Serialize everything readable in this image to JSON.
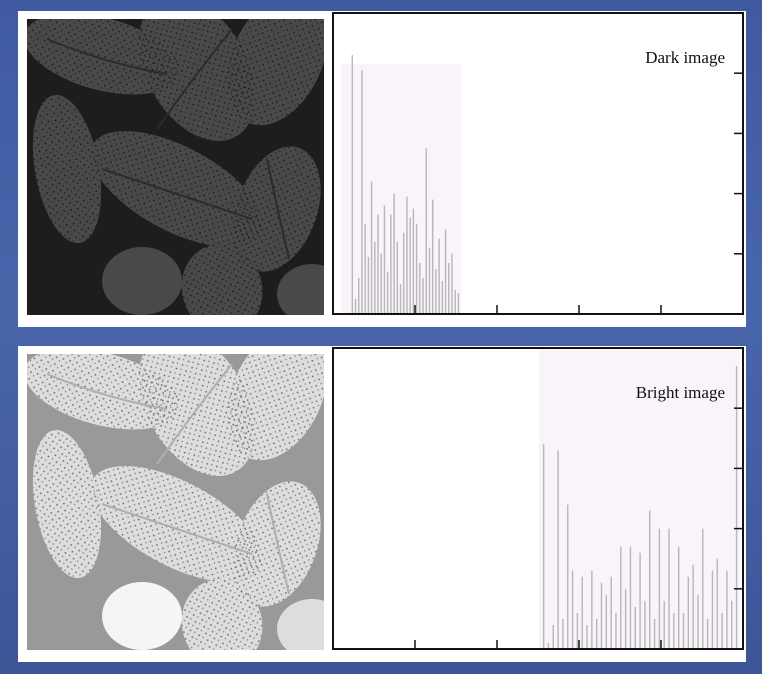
{
  "panels": [
    {
      "id": "dark",
      "image": {
        "description_icon": "pollen-grains-photo-dark"
      },
      "chart_data": {
        "type": "bar",
        "title": "Dark image",
        "xlabel": "",
        "ylabel": "",
        "xlim": [
          0,
          255
        ],
        "ylim": [
          0,
          1
        ],
        "tick_count_x": 5,
        "tick_count_y": 5,
        "grid": false,
        "highlight_range": [
          5,
          80
        ],
        "highlight_height": 0.83,
        "highlight_color": "#fbf3fc",
        "bar_color": "#b8b8b8",
        "x": [
          12,
          14,
          16,
          18,
          20,
          22,
          24,
          26,
          28,
          30,
          32,
          34,
          36,
          38,
          40,
          42,
          44,
          46,
          48,
          50,
          52,
          54,
          56,
          58,
          60,
          62,
          64,
          66,
          68,
          70,
          72,
          74,
          76,
          78
        ],
        "values": [
          0.86,
          0.05,
          0.12,
          0.81,
          0.3,
          0.19,
          0.44,
          0.24,
          0.33,
          0.2,
          0.36,
          0.14,
          0.33,
          0.4,
          0.24,
          0.1,
          0.27,
          0.39,
          0.32,
          0.35,
          0.3,
          0.17,
          0.12,
          0.55,
          0.22,
          0.38,
          0.15,
          0.25,
          0.11,
          0.28,
          0.17,
          0.2,
          0.08,
          0.07
        ]
      }
    },
    {
      "id": "bright",
      "image": {
        "description_icon": "pollen-grains-photo-bright"
      },
      "chart_data": {
        "type": "bar",
        "title": "Bright image",
        "xlabel": "",
        "ylabel": "",
        "xlim": [
          0,
          255
        ],
        "ylim": [
          0,
          1
        ],
        "tick_count_x": 5,
        "tick_count_y": 5,
        "grid": false,
        "highlight_range": [
          128,
          253
        ],
        "highlight_height": 1.0,
        "highlight_color": "#fbf3fc",
        "bar_color": "#b8b8b8",
        "x": [
          131,
          134,
          137,
          140,
          143,
          146,
          149,
          152,
          155,
          158,
          161,
          164,
          167,
          170,
          173,
          176,
          179,
          182,
          185,
          188,
          191,
          194,
          197,
          200,
          203,
          206,
          209,
          212,
          215,
          218,
          221,
          224,
          227,
          230,
          233,
          236,
          239,
          242,
          245,
          248,
          251
        ],
        "values": [
          0.68,
          0.02,
          0.08,
          0.66,
          0.1,
          0.48,
          0.26,
          0.12,
          0.24,
          0.08,
          0.26,
          0.1,
          0.22,
          0.18,
          0.24,
          0.12,
          0.34,
          0.2,
          0.34,
          0.14,
          0.32,
          0.16,
          0.46,
          0.1,
          0.4,
          0.16,
          0.4,
          0.12,
          0.34,
          0.12,
          0.24,
          0.28,
          0.18,
          0.4,
          0.1,
          0.26,
          0.3,
          0.12,
          0.26,
          0.16,
          0.94
        ]
      }
    }
  ]
}
